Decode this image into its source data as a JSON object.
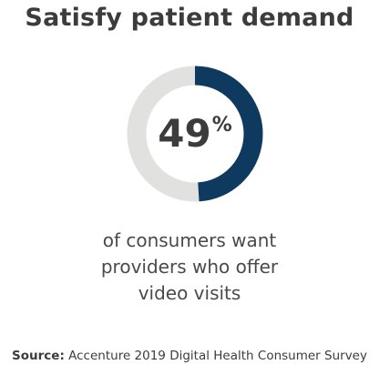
{
  "chart_data": {
    "type": "pie",
    "title": "Satisfy patient demand",
    "value_number": "49",
    "value_unit": "%",
    "values": [
      49,
      51
    ],
    "colors": {
      "filled": "#0d3a5e",
      "remainder": "#e1e1df"
    },
    "caption_lines": [
      "of consumers want",
      "providers who offer",
      "video visits"
    ]
  },
  "source": {
    "label": "Source:",
    "text": "Accenture 2019 Digital Health Consumer Survey"
  }
}
